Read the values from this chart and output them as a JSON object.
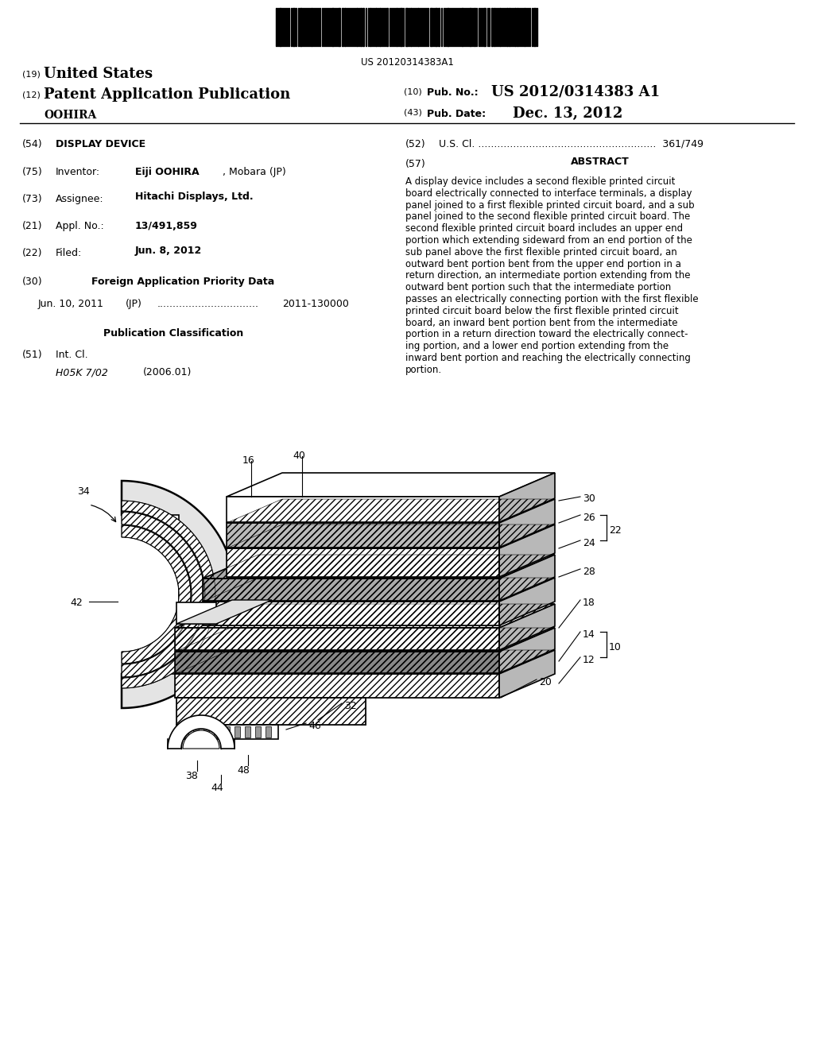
{
  "barcode_text": "US 20120314383A1",
  "bg_color": "#ffffff",
  "abstract_lines": [
    "A display device includes a second flexible printed circuit",
    "board electrically connected to interface terminals, a display",
    "panel joined to a first flexible printed circuit board, and a sub",
    "panel joined to the second flexible printed circuit board. The",
    "second flexible printed circuit board includes an upper end",
    "portion which extending sideward from an end portion of the",
    "sub panel above the first flexible printed circuit board, an",
    "outward bent portion bent from the upper end portion in a",
    "return direction, an intermediate portion extending from the",
    "outward bent portion such that the intermediate portion",
    "passes an electrically connecting portion with the first flexible",
    "printed circuit board below the first flexible printed circuit",
    "board, an inward bent portion bent from the intermediate",
    "portion in a return direction toward the electrically connect-",
    "ing portion, and a lower end portion extending from the",
    "inward bent portion and reaching the electrically connecting",
    "portion."
  ]
}
